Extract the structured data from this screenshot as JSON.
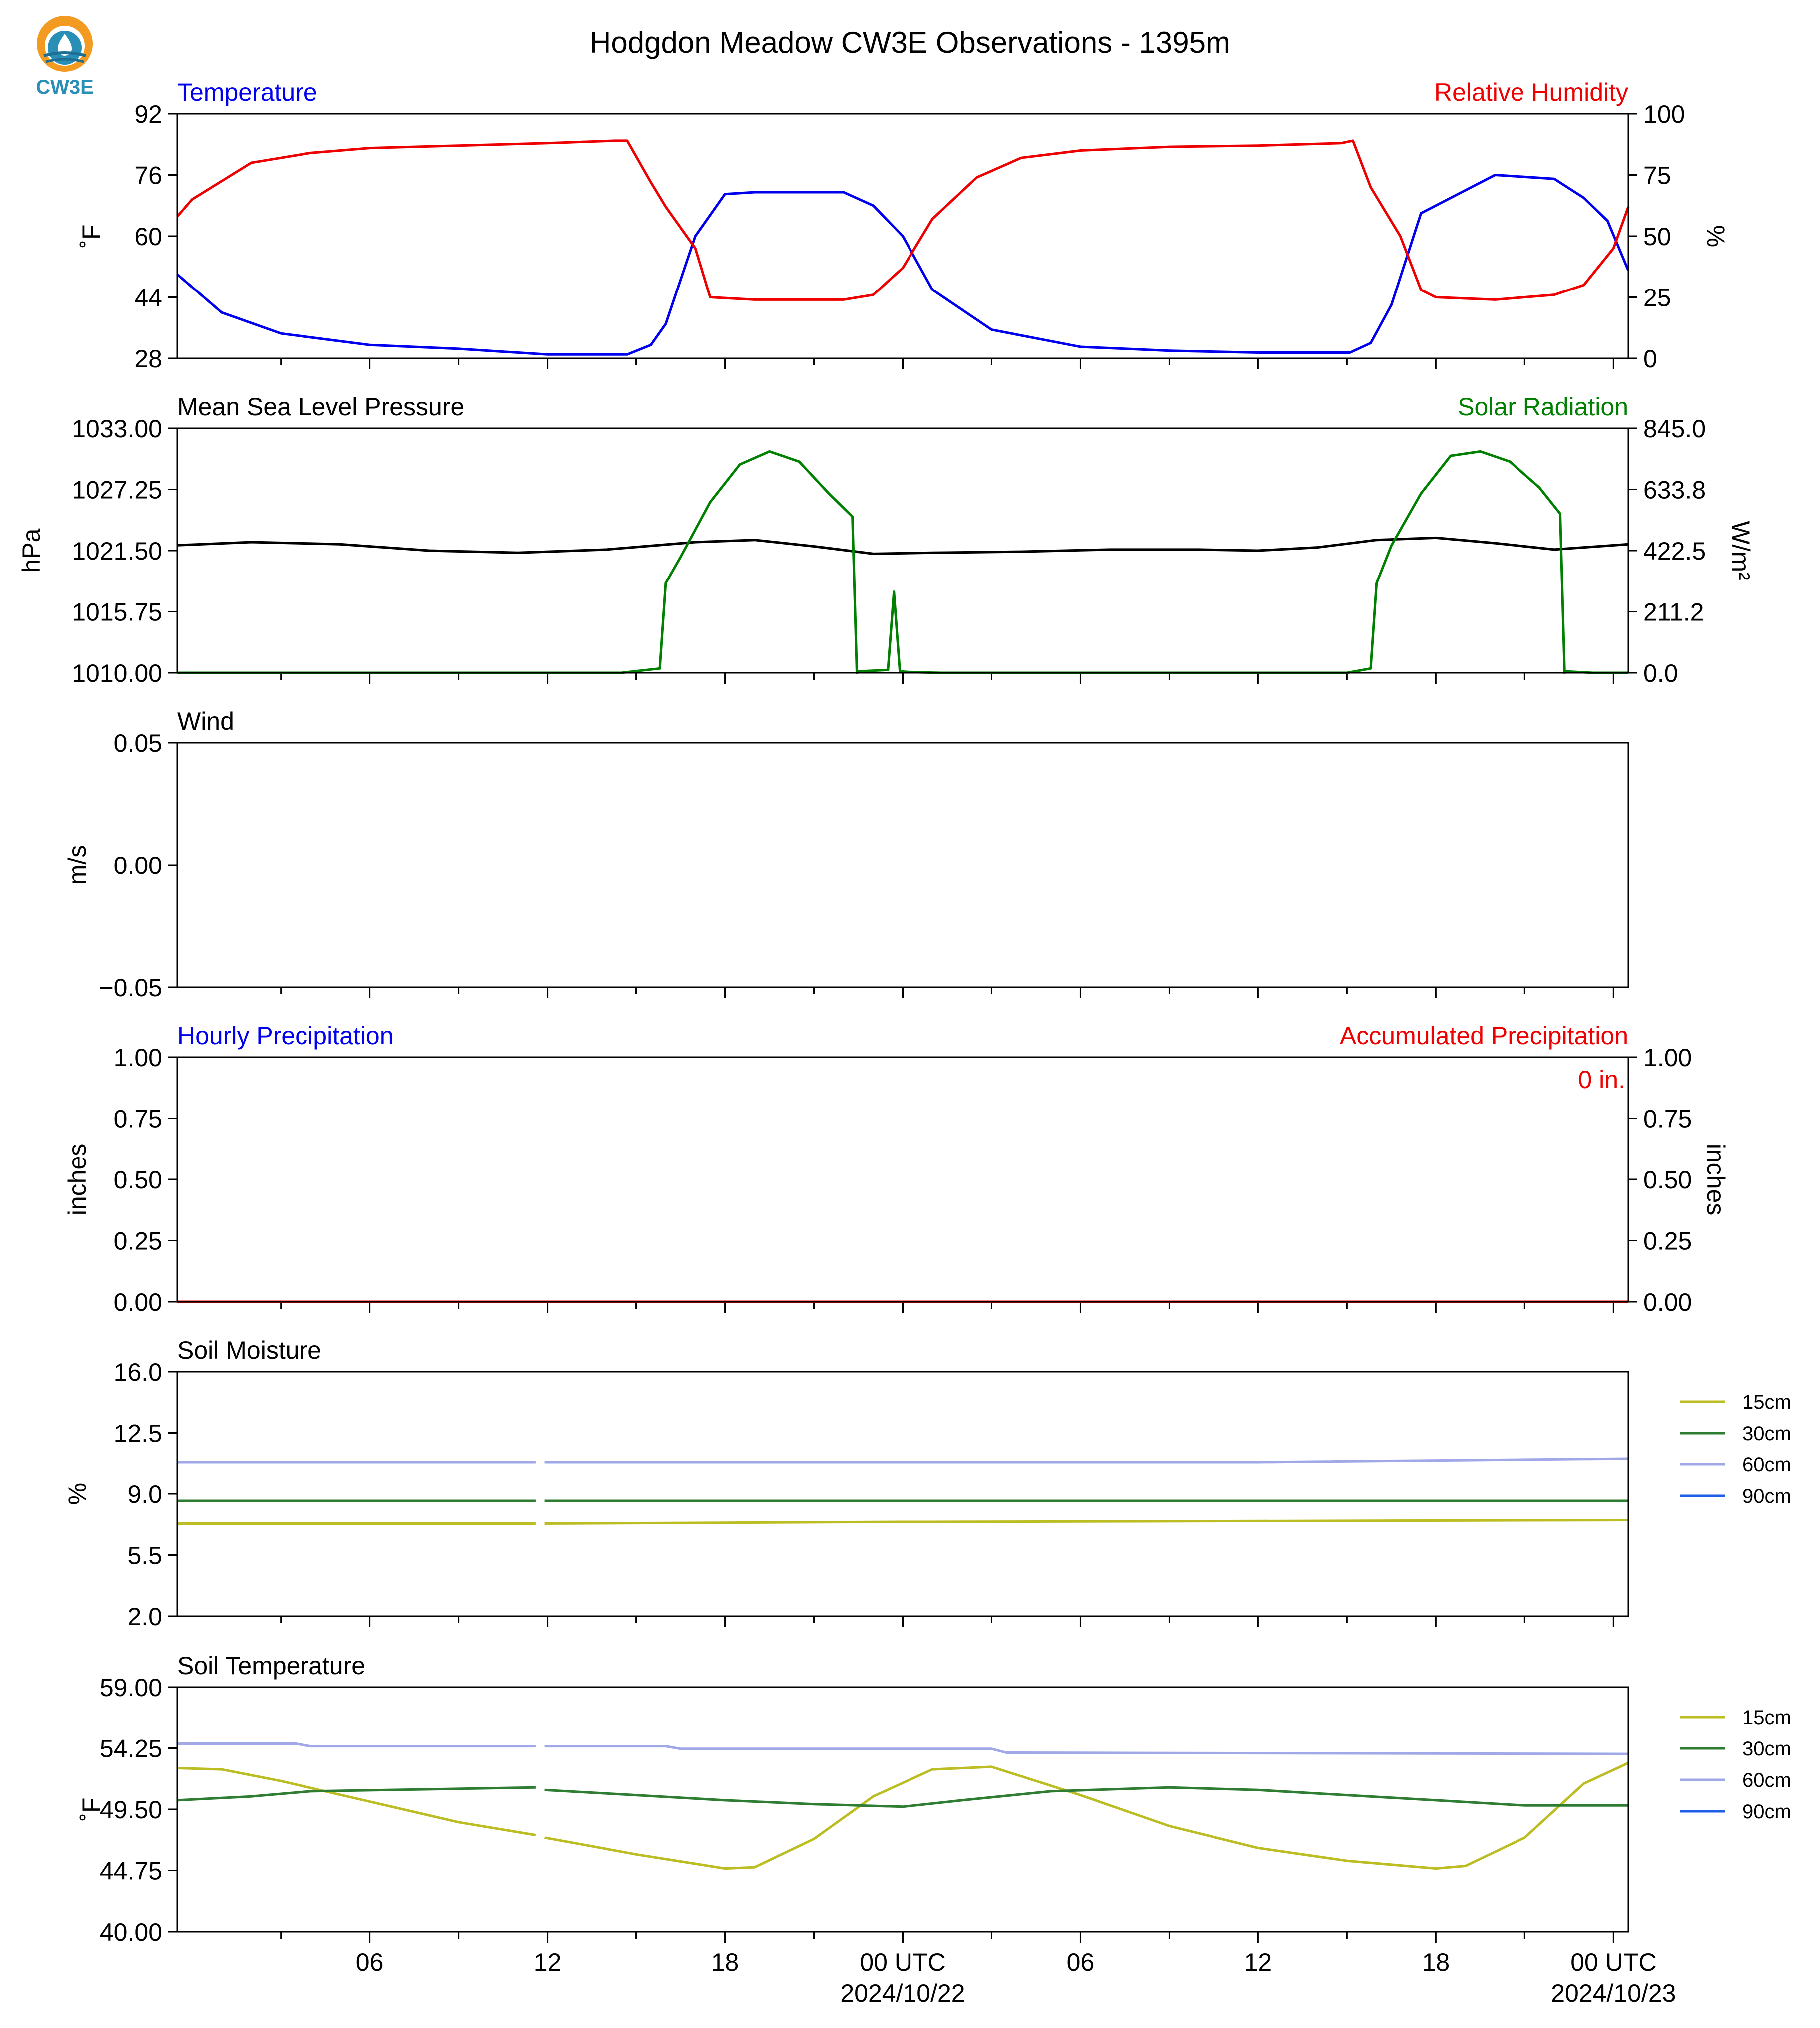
{
  "title": "Hodgdon Meadow CW3E Observations - 1395m",
  "logo": {
    "text": "CW3E",
    "colors": [
      "#f39a21",
      "#2a8fb7",
      "#1d6f94"
    ]
  },
  "x_axis": {
    "hours_start": -24.5,
    "hours_end": 24.5,
    "major_ticks": [
      {
        "h": -18,
        "label": "06",
        "sub": ""
      },
      {
        "h": -12,
        "label": "12",
        "sub": ""
      },
      {
        "h": -6,
        "label": "18",
        "sub": ""
      },
      {
        "h": 0,
        "label": "00 UTC",
        "sub": "2024/10/22"
      },
      {
        "h": 6,
        "label": "06",
        "sub": ""
      },
      {
        "h": 12,
        "label": "12",
        "sub": ""
      },
      {
        "h": 18,
        "label": "18",
        "sub": ""
      },
      {
        "h": 24,
        "label": "00 UTC",
        "sub": "2024/10/23"
      }
    ]
  },
  "chart_data": [
    {
      "type": "line",
      "panel": "temperature_humidity",
      "title_left": "Temperature",
      "title_right": "Relative Humidity",
      "ylabel": "˚F",
      "ylabel_right": "%",
      "ylim": [
        28,
        92
      ],
      "yticks": [
        "28",
        "44",
        "60",
        "76",
        "92"
      ],
      "ylim_right": [
        0,
        100
      ],
      "yticks_right": [
        "0",
        "25",
        "50",
        "75",
        "100"
      ],
      "colors": {
        "left": "#0000ee",
        "right": "#ee0000"
      },
      "series": [
        {
          "name": "Temperature",
          "axis": "left",
          "color": "#0000ee",
          "x": [
            -24.5,
            -23,
            -21,
            -18,
            -15,
            -12,
            -9.3,
            -8.5,
            -8,
            -7,
            -6,
            -5,
            -2,
            -1,
            0,
            1,
            3,
            6,
            9,
            12,
            15.1,
            15.8,
            16.5,
            17.5,
            20,
            22,
            23,
            23.8,
            24.5
          ],
          "y": [
            50,
            40,
            34.5,
            31.5,
            30.5,
            29,
            29,
            31.5,
            37,
            60,
            71,
            71.5,
            71.5,
            68,
            60,
            46,
            35.5,
            31,
            30,
            29.5,
            29.5,
            32,
            42,
            66,
            76,
            75,
            70,
            64,
            51
          ]
        },
        {
          "name": "Relative Humidity",
          "axis": "right",
          "color": "#ee0000",
          "x": [
            -24.5,
            -24,
            -22,
            -20,
            -18,
            -15,
            -12,
            -9.7,
            -9.3,
            -8.5,
            -8,
            -7,
            -6.5,
            -5,
            -2,
            -1,
            0,
            1,
            2.5,
            4,
            6,
            9,
            12,
            14.8,
            15.2,
            15.8,
            16.8,
            17.5,
            18,
            20,
            22,
            23,
            24,
            24.5
          ],
          "y": [
            58,
            65,
            80,
            84,
            86,
            87,
            88,
            89,
            89,
            72,
            62,
            45,
            25,
            24,
            24,
            26,
            37,
            57,
            74,
            82,
            85,
            86.5,
            87,
            88,
            89,
            70,
            50,
            28,
            25,
            24,
            26,
            30,
            45,
            62
          ]
        }
      ]
    },
    {
      "type": "line",
      "panel": "pressure_solar",
      "title_left": "Mean Sea Level Pressure",
      "title_right": "Solar Radiation",
      "ylabel": "hPa",
      "ylabel_right": "W/m²",
      "ylim": [
        1010.0,
        1033.0
      ],
      "yticks": [
        "1010.00",
        "1015.75",
        "1021.50",
        "1027.25",
        "1033.00"
      ],
      "ylim_right": [
        0.0,
        845.0
      ],
      "yticks_right": [
        "0.0",
        "211.2",
        "422.5",
        "633.8",
        "845.0"
      ],
      "colors": {
        "left": "#000000",
        "right": "#008000"
      },
      "series": [
        {
          "name": "Mean Sea Level Pressure",
          "axis": "left",
          "color": "#000000",
          "x": [
            -24.5,
            -22,
            -19,
            -16,
            -13,
            -10,
            -7,
            -5,
            -3,
            -1,
            1,
            4,
            7,
            10,
            12,
            14,
            16,
            18,
            20,
            22,
            24.5
          ],
          "y": [
            1022.0,
            1022.3,
            1022.1,
            1021.5,
            1021.3,
            1021.6,
            1022.3,
            1022.5,
            1021.9,
            1021.2,
            1021.3,
            1021.4,
            1021.6,
            1021.6,
            1021.5,
            1021.8,
            1022.5,
            1022.7,
            1022.2,
            1021.6,
            1022.1
          ]
        },
        {
          "name": "Solar Radiation",
          "axis": "right",
          "color": "#008000",
          "x": [
            -24.5,
            -9.5,
            -8.2,
            -8.0,
            -7.5,
            -6.5,
            -5.5,
            -4.5,
            -3.5,
            -2.5,
            -1.7,
            -1.55,
            -1.5,
            -0.5,
            -0.3,
            -0.1,
            0.3,
            1.3,
            15,
            15.8,
            16.0,
            16.5,
            17.5,
            18.5,
            19.5,
            20.5,
            21.5,
            22.2,
            22.35,
            22.4,
            23.3,
            24.5
          ],
          "y": [
            0,
            0,
            15,
            310,
            400,
            590,
            720,
            765,
            730,
            620,
            540,
            0,
            5,
            10,
            280,
            5,
            2,
            0,
            0,
            15,
            310,
            440,
            620,
            750,
            765,
            730,
            640,
            550,
            0,
            5,
            0,
            0
          ]
        }
      ]
    },
    {
      "type": "line",
      "panel": "wind",
      "title_left": "Wind",
      "ylabel": "m/s",
      "ylim": [
        -0.055,
        0.055
      ],
      "yticks": [
        "-0.05",
        "0.00",
        "0.05"
      ],
      "series": []
    },
    {
      "type": "line",
      "panel": "precipitation",
      "title_left": "Hourly Precipitation",
      "title_right": "Accumulated Precipitation",
      "ylabel": "inches",
      "ylabel_right": "inches",
      "ylim": [
        0.0,
        1.0
      ],
      "yticks": [
        "0.00",
        "0.25",
        "0.50",
        "0.75",
        "1.00"
      ],
      "ylim_right": [
        0.0,
        1.0
      ],
      "yticks_right": [
        "0.00",
        "0.25",
        "0.50",
        "0.75",
        "1.00"
      ],
      "annotation": "0 in.",
      "colors": {
        "left": "#0000ee",
        "right": "#ee0000"
      },
      "series": [
        {
          "name": "Hourly Precipitation",
          "axis": "left",
          "color": "#0000ee",
          "x": [
            -24.5,
            24.5
          ],
          "y": [
            0,
            0
          ]
        },
        {
          "name": "Accumulated Precipitation",
          "axis": "right",
          "color": "#ee0000",
          "x": [
            -24.5,
            24.5
          ],
          "y": [
            0,
            0
          ]
        }
      ]
    },
    {
      "type": "line",
      "panel": "soil_moisture",
      "title_left": "Soil Moisture",
      "ylabel": "%",
      "ylim": [
        2.0,
        16.0
      ],
      "yticks": [
        "2.0",
        "5.5",
        "9.0",
        "12.5",
        "16.0"
      ],
      "legend": "outside-right",
      "series": [
        {
          "name": "15cm",
          "color": "#bcbd22",
          "x": [
            -24.5,
            -12.4,
            null,
            -12.1,
            0,
            1,
            24.5
          ],
          "y": [
            7.3,
            7.3,
            null,
            7.3,
            7.4,
            7.4,
            7.5
          ]
        },
        {
          "name": "30cm",
          "color": "#2e7d32",
          "x": [
            -24.5,
            -12.4,
            null,
            -12.1,
            18,
            24.5
          ],
          "y": [
            8.6,
            8.6,
            null,
            8.6,
            8.6,
            8.6
          ]
        },
        {
          "name": "60cm",
          "color": "#a0a8e8",
          "x": [
            -24.5,
            -12.4,
            null,
            -12.1,
            0,
            12,
            24.5
          ],
          "y": [
            10.8,
            10.8,
            null,
            10.8,
            10.8,
            10.8,
            11.0
          ]
        },
        {
          "name": "90cm",
          "color": "#1f5fe8",
          "x": [],
          "y": []
        }
      ]
    },
    {
      "type": "line",
      "panel": "soil_temperature",
      "title_left": "Soil Temperature",
      "ylabel": "˚F",
      "ylim": [
        40.0,
        59.0
      ],
      "yticks": [
        "40.00",
        "44.75",
        "49.50",
        "54.25",
        "59.00"
      ],
      "legend": "outside-right",
      "series": [
        {
          "name": "15cm",
          "color": "#bcbd22",
          "x": [
            -24.5,
            -23,
            -21,
            -18,
            -15,
            -12.4,
            null,
            -12.1,
            -9,
            -6,
            -5,
            -3,
            -1,
            1,
            3,
            6,
            9,
            12,
            15,
            18,
            19,
            21,
            23,
            24.5
          ],
          "y": [
            52.7,
            52.6,
            51.7,
            50.1,
            48.5,
            47.5,
            null,
            47.3,
            46.0,
            44.9,
            45.0,
            47.2,
            50.5,
            52.6,
            52.8,
            50.6,
            48.2,
            46.5,
            45.5,
            44.9,
            45.1,
            47.3,
            51.5,
            53.1
          ]
        },
        {
          "name": "30cm",
          "color": "#2e7d32",
          "x": [
            -24.5,
            -22,
            -20,
            -12.4,
            null,
            -12.1,
            -9,
            -6,
            -3,
            0,
            2,
            5,
            9,
            12,
            15,
            18,
            21,
            24.5
          ],
          "y": [
            50.2,
            50.5,
            50.9,
            51.2,
            null,
            51.0,
            50.6,
            50.2,
            49.9,
            49.7,
            50.2,
            50.9,
            51.2,
            51.0,
            50.6,
            50.2,
            49.8,
            49.8
          ]
        },
        {
          "name": "60cm",
          "color": "#a0a8e8",
          "x": [
            -24.5,
            -20.5,
            -20,
            -12.4,
            null,
            -12.1,
            -8,
            -7.5,
            3,
            3.5,
            24.5
          ],
          "y": [
            54.6,
            54.6,
            54.4,
            54.4,
            null,
            54.4,
            54.4,
            54.2,
            54.2,
            53.9,
            53.8
          ]
        },
        {
          "name": "90cm",
          "color": "#1f5fe8",
          "x": [],
          "y": []
        }
      ]
    }
  ]
}
